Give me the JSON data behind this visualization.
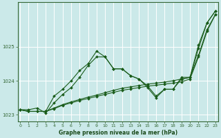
{
  "title": "Graphe pression niveau de la mer (hPa)",
  "bg_color": "#cbe9e9",
  "plot_bg_color": "#cbe9e9",
  "grid_color": "#ffffff",
  "line_color": "#1a5c1a",
  "axis_color": "#336633",
  "label_color": "#1a4a1a",
  "xlim": [
    -0.3,
    23.3
  ],
  "ylim": [
    1022.8,
    1026.3
  ],
  "yticks": [
    1023,
    1024,
    1025
  ],
  "xticks": [
    0,
    1,
    2,
    3,
    4,
    5,
    6,
    7,
    8,
    9,
    10,
    11,
    12,
    13,
    14,
    15,
    16,
    17,
    18,
    19,
    20,
    21,
    22,
    23
  ],
  "series": [
    {
      "x": [
        0,
        1,
        2,
        3,
        4,
        5,
        6,
        7,
        8,
        9,
        10,
        11,
        12,
        13,
        14,
        15,
        16,
        17,
        18,
        19,
        20,
        21,
        22,
        23
      ],
      "y": [
        1023.15,
        1023.15,
        1023.2,
        1023.05,
        1023.35,
        1023.6,
        1023.8,
        1024.1,
        1024.45,
        1024.7,
        1024.7,
        1024.35,
        1024.35,
        1024.15,
        1024.05,
        1023.8,
        1023.5,
        1023.75,
        1023.75,
        1024.05,
        1024.1,
        1025.05,
        1025.7,
        1026.05
      ]
    },
    {
      "x": [
        0,
        1,
        2,
        3,
        4,
        5,
        6,
        7,
        8,
        9,
        10,
        11,
        12,
        13,
        14,
        15,
        16,
        17,
        18,
        19,
        20,
        21,
        22,
        23
      ],
      "y": [
        1023.15,
        1023.1,
        1023.1,
        1023.1,
        1023.55,
        1023.75,
        1024.0,
        1024.3,
        1024.5,
        1024.87,
        1024.7,
        1024.35,
        1024.35,
        1024.15,
        1024.05,
        1023.85,
        1023.55,
        1023.75,
        1023.75,
        1024.1,
        1024.1,
        1024.95,
        1025.7,
        1026.05
      ]
    },
    {
      "x": [
        0,
        1,
        2,
        3,
        4,
        5,
        6,
        7,
        8,
        9,
        10,
        11,
        12,
        13,
        14,
        15,
        16,
        17,
        18,
        19,
        20,
        21,
        22,
        23
      ],
      "y": [
        1023.15,
        1023.1,
        1023.1,
        1023.1,
        1023.2,
        1023.3,
        1023.38,
        1023.45,
        1023.52,
        1023.58,
        1023.65,
        1023.72,
        1023.78,
        1023.82,
        1023.86,
        1023.9,
        1023.93,
        1023.96,
        1024.0,
        1024.05,
        1024.1,
        1024.75,
        1025.5,
        1025.95
      ]
    },
    {
      "x": [
        0,
        1,
        2,
        3,
        4,
        5,
        6,
        7,
        8,
        9,
        10,
        11,
        12,
        13,
        14,
        15,
        16,
        17,
        18,
        19,
        20,
        21,
        22,
        23
      ],
      "y": [
        1023.15,
        1023.1,
        1023.1,
        1023.1,
        1023.18,
        1023.28,
        1023.35,
        1023.42,
        1023.48,
        1023.54,
        1023.6,
        1023.66,
        1023.72,
        1023.76,
        1023.8,
        1023.84,
        1023.87,
        1023.9,
        1023.93,
        1023.97,
        1024.05,
        1024.7,
        1025.45,
        1025.95
      ]
    }
  ]
}
